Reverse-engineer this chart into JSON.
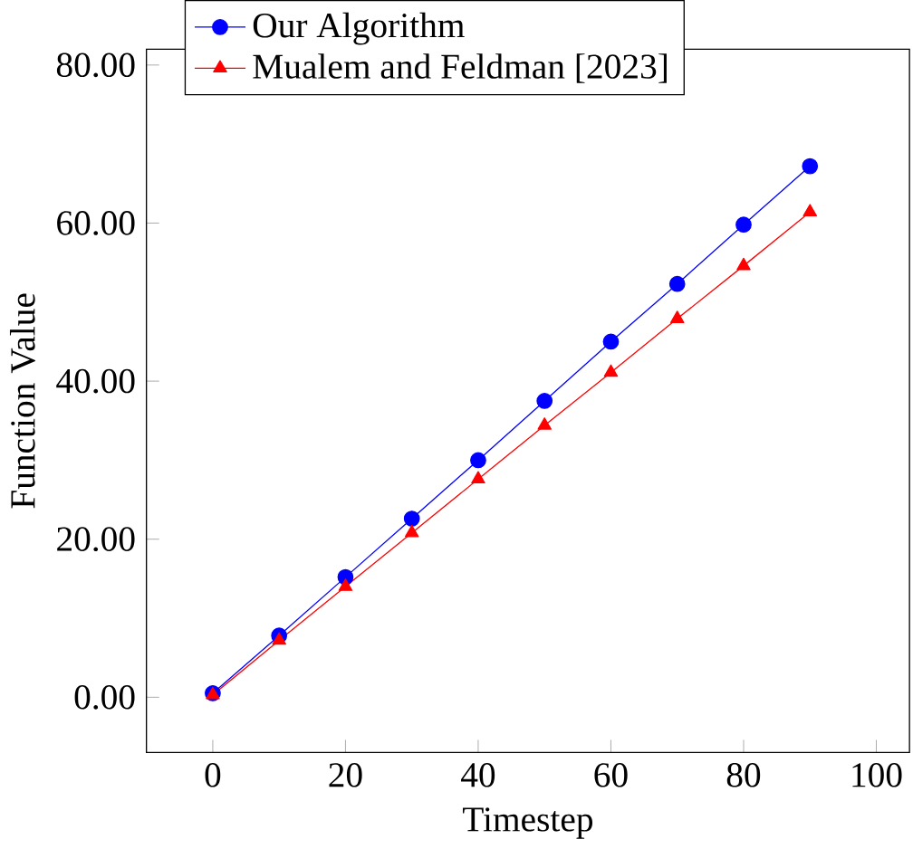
{
  "chart_data": {
    "type": "line",
    "xlabel": "Timestep",
    "ylabel": "Function Value",
    "x": [
      0,
      10,
      20,
      30,
      40,
      50,
      60,
      70,
      80,
      90
    ],
    "series": [
      {
        "name": "Our Algorithm",
        "color": "#0000ff",
        "marker": "circle",
        "values": [
          0.5,
          7.8,
          15.2,
          22.6,
          30.0,
          37.5,
          45.0,
          52.3,
          59.8,
          67.2
        ]
      },
      {
        "name": "Mualem and Feldman [2023]",
        "color": "#ff0000",
        "marker": "triangle",
        "values": [
          0.3,
          7.2,
          14.0,
          20.8,
          27.6,
          34.4,
          41.1,
          47.9,
          54.6,
          61.4
        ]
      }
    ],
    "xlim": [
      -10,
      105
    ],
    "ylim": [
      -7,
      82
    ],
    "xticks": [
      0,
      20,
      40,
      60,
      80,
      100
    ],
    "yticks": [
      {
        "value": 0,
        "label": "0.00"
      },
      {
        "value": 20,
        "label": "20.00"
      },
      {
        "value": 40,
        "label": "40.00"
      },
      {
        "value": 60,
        "label": "60.00"
      },
      {
        "value": 80,
        "label": "80.00"
      }
    ],
    "legend": "top left",
    "grid": false
  }
}
